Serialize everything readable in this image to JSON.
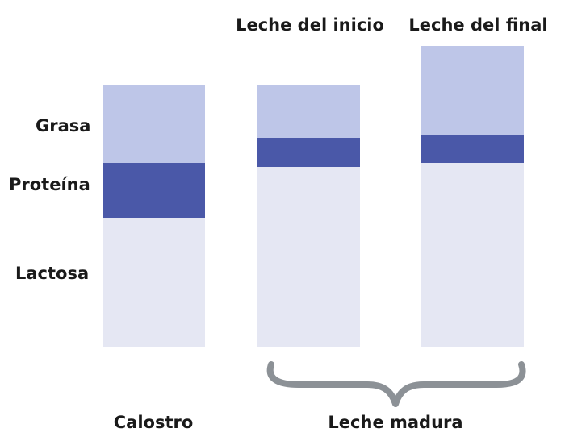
{
  "row_labels": {
    "fat": "Grasa",
    "protein": "Proteína",
    "lactose": "Lactosa"
  },
  "columns": [
    {
      "top_label": "",
      "bottom_label": "Calostro",
      "fill_color_fat": "#bec6e8",
      "fill_color_protein": "#4a58a8",
      "fill_color_lactose": "#e5e7f3"
    },
    {
      "top_label": "Leche del inicio",
      "bottom_label": ""
    },
    {
      "top_label": "Leche del final",
      "bottom_label": ""
    }
  ],
  "group_label": "Leche madura",
  "brace_color": "#8c9196"
}
